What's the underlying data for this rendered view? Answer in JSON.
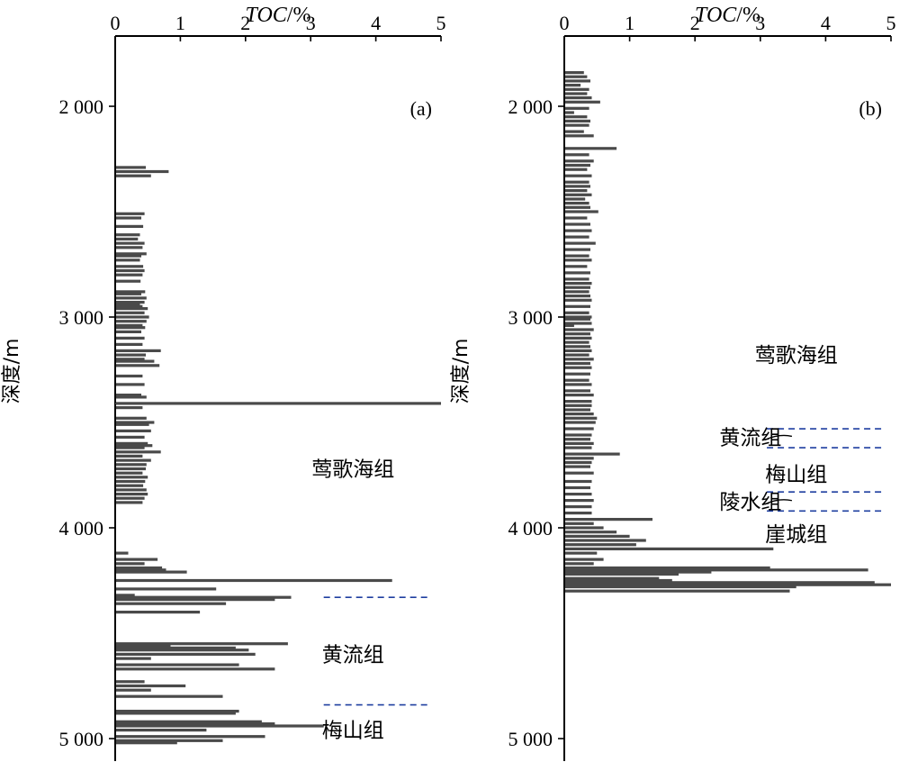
{
  "chart_data": [
    {
      "type": "bar",
      "orientation": "horizontal",
      "panel_label": "(a)",
      "xlabel_italic": "TOC",
      "xlabel_unit": "/%",
      "ylabel": "深度/m",
      "xlim": [
        0,
        5
      ],
      "ylim": [
        1800,
        5050
      ],
      "y_reversed": true,
      "x_ticks": [
        "0",
        "1",
        "2",
        "3",
        "4",
        "5"
      ],
      "y_ticks": [
        "2 000",
        "3 000",
        "4 000",
        "5 000"
      ],
      "series": [
        {
          "x": [
            0.47,
            0.82,
            0.55,
            0.45,
            0.4,
            0.43,
            0.38,
            0.35,
            0.45,
            0.42,
            0.48,
            0.4,
            0.38,
            0.43,
            0.45,
            0.42,
            0.39,
            0.46,
            0.4,
            0.48,
            0.45,
            0.38,
            0.42,
            0.5,
            0.45,
            0.52,
            0.48,
            0.42,
            0.46,
            0.4,
            0.45,
            0.42,
            0.7,
            0.47,
            0.45,
            0.6,
            0.68,
            0.42,
            0.45,
            0.4,
            0.48,
            5.0,
            0.42,
            0.48,
            0.6,
            0.52,
            0.55,
            0.45,
            0.5,
            0.57,
            0.45,
            0.7,
            0.42,
            0.55,
            0.48,
            0.47,
            0.42,
            0.5,
            0.46,
            0.43,
            0.48,
            0.5,
            0.45,
            0.42,
            0.2,
            0.65,
            0.45,
            0.72,
            0.78,
            1.1,
            4.25,
            1.55,
            0.3,
            2.7,
            2.45,
            1.7,
            1.3,
            2.65,
            0.85,
            1.85,
            2.05,
            2.15,
            0.55,
            1.9,
            2.45,
            0.45,
            1.08,
            0.55,
            1.65,
            1.9,
            1.85,
            2.25,
            2.45,
            3.2,
            1.4,
            2.3,
            1.65,
            0.95
          ],
          "y": [
            2290,
            2310,
            2330,
            2510,
            2530,
            2570,
            2610,
            2630,
            2650,
            2670,
            2700,
            2710,
            2730,
            2760,
            2780,
            2800,
            2830,
            2880,
            2890,
            2910,
            2930,
            2940,
            2950,
            2960,
            2980,
            3000,
            3020,
            3040,
            3050,
            3070,
            3100,
            3130,
            3160,
            3180,
            3200,
            3210,
            3230,
            3280,
            3320,
            3370,
            3380,
            3410,
            3430,
            3480,
            3500,
            3510,
            3540,
            3570,
            3600,
            3610,
            3620,
            3640,
            3660,
            3680,
            3700,
            3720,
            3740,
            3760,
            3780,
            3800,
            3820,
            3840,
            3860,
            3880,
            4120,
            4150,
            4170,
            4190,
            4200,
            4210,
            4250,
            4290,
            4320,
            4330,
            4340,
            4360,
            4400,
            4550,
            4560,
            4570,
            4580,
            4600,
            4620,
            4650,
            4670,
            4730,
            4750,
            4770,
            4800,
            4870,
            4880,
            4920,
            4930,
            4940,
            4960,
            4990,
            5010,
            5020
          ]
        }
      ],
      "boundaries": [
        {
          "depth": 3410,
          "style": "solid",
          "x_start": 0,
          "x_end": 5
        },
        {
          "depth": 4330,
          "style": "dashed",
          "x_start": 3.2,
          "x_end": 4.85
        },
        {
          "depth": 4840,
          "style": "dashed",
          "x_start": 3.2,
          "x_end": 4.85
        }
      ],
      "formations": [
        {
          "label": "莺歌海组",
          "x": 3.65,
          "depth": 3720
        },
        {
          "label": "黄流组",
          "x": 3.65,
          "depth": 4600
        },
        {
          "label": "梅山组",
          "x": 3.65,
          "depth": 4960
        }
      ]
    },
    {
      "type": "bar",
      "orientation": "horizontal",
      "panel_label": "(b)",
      "xlabel_italic": "TOC",
      "xlabel_unit": "/%",
      "ylabel": "深度/m",
      "xlim": [
        0,
        5
      ],
      "ylim": [
        1800,
        5050
      ],
      "y_reversed": true,
      "x_ticks": [
        "0",
        "1",
        "2",
        "3",
        "4",
        "5"
      ],
      "y_ticks": [
        "2 000",
        "3 000",
        "4 000",
        "5 000"
      ],
      "series": [
        {
          "x": [
            0.3,
            0.35,
            0.4,
            0.25,
            0.38,
            0.35,
            0.42,
            0.55,
            0.38,
            0.15,
            0.35,
            0.4,
            0.38,
            0.3,
            0.45,
            0.8,
            0.38,
            0.45,
            0.4,
            0.35,
            0.42,
            0.38,
            0.4,
            0.35,
            0.42,
            0.32,
            0.38,
            0.4,
            0.52,
            0.35,
            0.4,
            0.42,
            0.38,
            0.48,
            0.4,
            0.38,
            0.42,
            0.35,
            0.4,
            0.38,
            0.42,
            0.4,
            0.38,
            0.4,
            0.42,
            0.4,
            0.38,
            0.42,
            0.4,
            0.42,
            0.15,
            0.45,
            0.4,
            0.42,
            0.38,
            0.4,
            0.42,
            0.38,
            0.45,
            0.4,
            0.42,
            0.4,
            0.38,
            0.42,
            0.4,
            0.45,
            0.42,
            0.42,
            0.4,
            0.45,
            0.5,
            0.48,
            0.45,
            0.42,
            0.4,
            0.45,
            0.42,
            0.85,
            0.45,
            0.42,
            0.4,
            0.45,
            0.42,
            0.4,
            0.42,
            0.45,
            0.42,
            0.42,
            1.35,
            0.45,
            0.6,
            0.8,
            1.0,
            1.25,
            1.1,
            3.2,
            0.5,
            0.6,
            0.45,
            3.15,
            4.65,
            2.25,
            1.75,
            1.45,
            1.65,
            4.75,
            5.0,
            3.55,
            3.45
          ],
          "y": [
            1840,
            1860,
            1880,
            1900,
            1920,
            1940,
            1960,
            1980,
            2010,
            2030,
            2050,
            2070,
            2090,
            2120,
            2140,
            2200,
            2230,
            2260,
            2280,
            2300,
            2330,
            2360,
            2380,
            2400,
            2420,
            2440,
            2460,
            2480,
            2500,
            2530,
            2560,
            2590,
            2620,
            2650,
            2680,
            2710,
            2730,
            2760,
            2790,
            2820,
            2840,
            2860,
            2880,
            2900,
            2920,
            2950,
            2980,
            3000,
            3010,
            3030,
            3040,
            3060,
            3080,
            3100,
            3120,
            3140,
            3160,
            3180,
            3200,
            3220,
            3240,
            3270,
            3300,
            3320,
            3350,
            3370,
            3400,
            3420,
            3440,
            3460,
            3480,
            3500,
            3530,
            3560,
            3580,
            3600,
            3620,
            3650,
            3670,
            3690,
            3710,
            3740,
            3780,
            3810,
            3840,
            3870,
            3900,
            3930,
            3960,
            3980,
            4000,
            4020,
            4040,
            4060,
            4080,
            4100,
            4120,
            4150,
            4170,
            4190,
            4200,
            4210,
            4220,
            4240,
            4250,
            4260,
            4270,
            4280,
            4300
          ]
        }
      ],
      "boundaries": [
        {
          "depth": 3530,
          "style": "dashed",
          "x_start": 3.1,
          "x_end": 4.85
        },
        {
          "depth": 3620,
          "style": "dashed",
          "x_start": 3.1,
          "x_end": 4.85
        },
        {
          "depth": 3830,
          "style": "dashed",
          "x_start": 3.1,
          "x_end": 4.85
        },
        {
          "depth": 3920,
          "style": "dashed",
          "x_start": 3.1,
          "x_end": 4.85
        }
      ],
      "formations": [
        {
          "label": "莺歌海组",
          "x": 3.55,
          "depth": 3180
        },
        {
          "label": "黄流组",
          "x": 2.85,
          "depth": 3570,
          "leader_to": 3.1
        },
        {
          "label": "梅山组",
          "x": 3.55,
          "depth": 3745
        },
        {
          "label": "陵水组",
          "x": 2.85,
          "depth": 3875,
          "leader_to": 3.1
        },
        {
          "label": "崖城组",
          "x": 3.55,
          "depth": 4030
        }
      ]
    }
  ]
}
